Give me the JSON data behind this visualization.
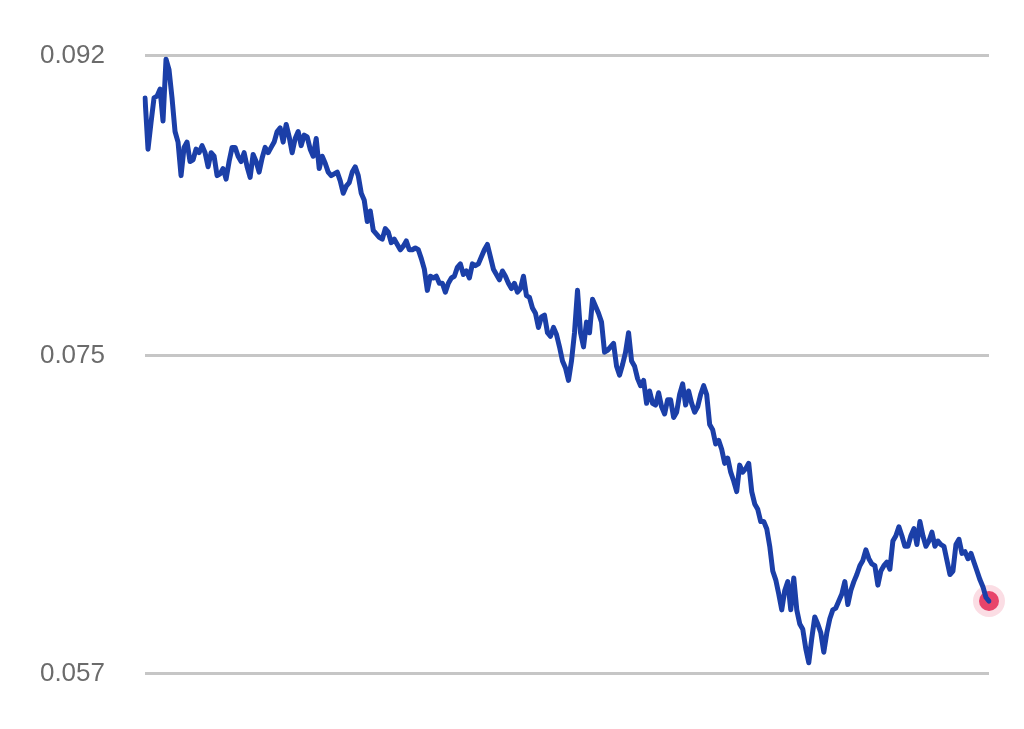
{
  "chart_data": {
    "type": "line",
    "categories": [
      null,
      null,
      null,
      null,
      null,
      null,
      null,
      null,
      null,
      null,
      null,
      null,
      null,
      null,
      null,
      null,
      null,
      null,
      null,
      null,
      null,
      null,
      null,
      null,
      null,
      null,
      null,
      null,
      null,
      null,
      null,
      null,
      null,
      null,
      null,
      null,
      null,
      null,
      null,
      null,
      null,
      null,
      null,
      null,
      null,
      null,
      null,
      null,
      null,
      null,
      null,
      null,
      null,
      null,
      null,
      null,
      null,
      null,
      null,
      null,
      null,
      null,
      null,
      null,
      null,
      null,
      null,
      null,
      null,
      null,
      null,
      null,
      null,
      null,
      null,
      null,
      null,
      null,
      null,
      null,
      null,
      null,
      null,
      null,
      null,
      null,
      null,
      null,
      null,
      null,
      null,
      null,
      null,
      null,
      null,
      null,
      null,
      null,
      null,
      null,
      null,
      null,
      null,
      null,
      null,
      null,
      null,
      null,
      null,
      null,
      null,
      null,
      null,
      null,
      null,
      null,
      null,
      null,
      null,
      null,
      null,
      null,
      null,
      null,
      null,
      null,
      null,
      null,
      null,
      null,
      null,
      null,
      null,
      null,
      null,
      null,
      null,
      null,
      null,
      null,
      null,
      null,
      null,
      null,
      null,
      null,
      null,
      null,
      null,
      null,
      null,
      null,
      null,
      null,
      null,
      null,
      null,
      null,
      null,
      null,
      null,
      null,
      null,
      null,
      null,
      null,
      null,
      null,
      null,
      null,
      null,
      null,
      null,
      null,
      null,
      null,
      null,
      null,
      null,
      null,
      null,
      null,
      null,
      null,
      null,
      null,
      null,
      null,
      null,
      null,
      null,
      null,
      null,
      null,
      null,
      null,
      null,
      null,
      null,
      null,
      null,
      null,
      null,
      null,
      null,
      null,
      null,
      null,
      null,
      null,
      null,
      null,
      null,
      null,
      null,
      null,
      null,
      null,
      null,
      null,
      null,
      null,
      null,
      null,
      null,
      null,
      null,
      null,
      null,
      null,
      null,
      null,
      null,
      null,
      null,
      null,
      null,
      null,
      null,
      null,
      null,
      null,
      null,
      null,
      null,
      null,
      null,
      null,
      null,
      null,
      null,
      null,
      null,
      null,
      null,
      null,
      null,
      null,
      null,
      null,
      null,
      null,
      null,
      null,
      null,
      null,
      null,
      null,
      null,
      null,
      null,
      null,
      null,
      null,
      null,
      null,
      null,
      null,
      null,
      null,
      null,
      null
    ],
    "series": [
      {
        "type": "line",
        "color": "#1b3fa8",
        "values": [
          0.0896,
          0.0867,
          0.0882,
          0.0896,
          0.0897,
          0.0901,
          0.0883,
          0.0918,
          0.0912,
          0.0896,
          0.0877,
          0.0871,
          0.0852,
          0.0868,
          0.0871,
          0.086,
          0.0861,
          0.0867,
          0.0865,
          0.0869,
          0.0865,
          0.0857,
          0.0865,
          0.0863,
          0.0852,
          0.0853,
          0.0856,
          0.085,
          0.086,
          0.0868,
          0.0868,
          0.0863,
          0.086,
          0.0865,
          0.0857,
          0.0851,
          0.0864,
          0.086,
          0.0854,
          0.0862,
          0.0868,
          0.0865,
          0.0868,
          0.0871,
          0.0877,
          0.0879,
          0.0871,
          0.0881,
          0.0874,
          0.0865,
          0.0873,
          0.0877,
          0.0869,
          0.0875,
          0.0874,
          0.0867,
          0.0863,
          0.0873,
          0.0856,
          0.0863,
          0.0859,
          0.0854,
          0.0852,
          0.0853,
          0.0854,
          0.0849,
          0.0842,
          0.0846,
          0.0848,
          0.0854,
          0.0857,
          0.0852,
          0.0842,
          0.0838,
          0.0826,
          0.0832,
          0.0821,
          0.0819,
          0.0817,
          0.0816,
          0.0822,
          0.082,
          0.0814,
          0.0816,
          0.0813,
          0.081,
          0.0812,
          0.0815,
          0.081,
          0.081,
          0.0811,
          0.081,
          0.0805,
          0.0799,
          0.0787,
          0.0795,
          0.0794,
          0.0795,
          0.0791,
          0.0791,
          0.0786,
          0.0791,
          0.0794,
          0.0795,
          0.08,
          0.0802,
          0.0796,
          0.0798,
          0.0794,
          0.0802,
          0.0801,
          0.0802,
          0.0806,
          0.081,
          0.0813,
          0.0806,
          0.0799,
          0.0796,
          0.0793,
          0.0798,
          0.0795,
          0.0791,
          0.0788,
          0.0791,
          0.0786,
          0.0788,
          0.0795,
          0.0784,
          0.0783,
          0.0777,
          0.0774,
          0.0766,
          0.0772,
          0.0773,
          0.0763,
          0.0761,
          0.0766,
          0.0762,
          0.0755,
          0.0747,
          0.0743,
          0.0736,
          0.0747,
          0.0763,
          0.0787,
          0.0763,
          0.0755,
          0.0769,
          0.0763,
          0.0782,
          0.0778,
          0.0774,
          0.0769,
          0.0752,
          0.0753,
          0.0755,
          0.0757,
          0.0744,
          0.0739,
          0.0745,
          0.0752,
          0.0763,
          0.0747,
          0.0744,
          0.0737,
          0.0733,
          0.0736,
          0.0723,
          0.073,
          0.0723,
          0.0722,
          0.0729,
          0.0721,
          0.0717,
          0.0725,
          0.0725,
          0.0715,
          0.0718,
          0.0728,
          0.0734,
          0.0722,
          0.073,
          0.0723,
          0.0718,
          0.0721,
          0.0728,
          0.0733,
          0.0728,
          0.0711,
          0.0708,
          0.07,
          0.0702,
          0.0697,
          0.0689,
          0.0692,
          0.0684,
          0.0679,
          0.0673,
          0.0688,
          0.0684,
          0.0686,
          0.0689,
          0.0673,
          0.0666,
          0.0663,
          0.0656,
          0.0656,
          0.0652,
          0.0642,
          0.0628,
          0.0623,
          0.0615,
          0.0606,
          0.0617,
          0.0622,
          0.0606,
          0.0624,
          0.0606,
          0.0598,
          0.0595,
          0.0584,
          0.0576,
          0.059,
          0.0602,
          0.0598,
          0.0593,
          0.0582,
          0.0593,
          0.0601,
          0.0606,
          0.0607,
          0.0611,
          0.0615,
          0.0622,
          0.0609,
          0.0617,
          0.0622,
          0.0626,
          0.0631,
          0.0634,
          0.064,
          0.0635,
          0.0632,
          0.0631,
          0.062,
          0.0628,
          0.0631,
          0.0633,
          0.0629,
          0.0645,
          0.0648,
          0.0653,
          0.0648,
          0.0642,
          0.0642,
          0.0648,
          0.0652,
          0.0643,
          0.0656,
          0.0648,
          0.0642,
          0.0645,
          0.065,
          0.0642,
          0.0645,
          0.0643,
          0.0642,
          0.0634,
          0.0626,
          0.0628,
          0.0643,
          0.0646,
          0.0638,
          0.0639,
          0.0635,
          0.0638,
          0.0633,
          0.0628,
          0.0623,
          0.0619,
          0.0613,
          0.0611
        ]
      },
      {
        "type": "scatter",
        "color": "#e8456b",
        "values": [
          null,
          null,
          null,
          null,
          null,
          null,
          null,
          null,
          null,
          null,
          null,
          null,
          null,
          null,
          null,
          null,
          null,
          null,
          null,
          null,
          null,
          null,
          null,
          null,
          null,
          null,
          null,
          null,
          null,
          null,
          null,
          null,
          null,
          null,
          null,
          null,
          null,
          null,
          null,
          null,
          null,
          null,
          null,
          null,
          null,
          null,
          null,
          null,
          null,
          null,
          null,
          null,
          null,
          null,
          null,
          null,
          null,
          null,
          null,
          null,
          null,
          null,
          null,
          null,
          null,
          null,
          null,
          null,
          null,
          null,
          null,
          null,
          null,
          null,
          null,
          null,
          null,
          null,
          null,
          null,
          null,
          null,
          null,
          null,
          null,
          null,
          null,
          null,
          null,
          null,
          null,
          null,
          null,
          null,
          null,
          null,
          null,
          null,
          null,
          null,
          null,
          null,
          null,
          null,
          null,
          null,
          null,
          null,
          null,
          null,
          null,
          null,
          null,
          null,
          null,
          null,
          null,
          null,
          null,
          null,
          null,
          null,
          null,
          null,
          null,
          null,
          null,
          null,
          null,
          null,
          null,
          null,
          null,
          null,
          null,
          null,
          null,
          null,
          null,
          null,
          null,
          null,
          null,
          null,
          null,
          null,
          null,
          null,
          null,
          null,
          null,
          null,
          null,
          null,
          null,
          null,
          null,
          null,
          null,
          null,
          null,
          null,
          null,
          null,
          null,
          null,
          null,
          null,
          null,
          null,
          null,
          null,
          null,
          null,
          null,
          null,
          null,
          null,
          null,
          null,
          null,
          null,
          null,
          null,
          null,
          null,
          null,
          null,
          null,
          null,
          null,
          null,
          null,
          null,
          null,
          null,
          null,
          null,
          null,
          null,
          null,
          null,
          null,
          null,
          null,
          null,
          null,
          null,
          null,
          null,
          null,
          null,
          null,
          null,
          null,
          null,
          null,
          null,
          null,
          null,
          null,
          null,
          null,
          null,
          null,
          null,
          null,
          null,
          null,
          null,
          null,
          null,
          null,
          null,
          null,
          null,
          null,
          null,
          null,
          null,
          null,
          null,
          null,
          null,
          null,
          null,
          null,
          null,
          null,
          null,
          null,
          null,
          null,
          null,
          null,
          null,
          null,
          null,
          null,
          null,
          null,
          null,
          null,
          null,
          null,
          null,
          null,
          null,
          null,
          null,
          null,
          null,
          null,
          null,
          null,
          null,
          null,
          null,
          null,
          null,
          null,
          0.0611
        ]
      }
    ],
    "ylim": [
      0.057,
      0.092
    ],
    "yticks": [
      0.057,
      0.075,
      0.092
    ],
    "grid": "y",
    "tick_labels": "y",
    "legend": false
  }
}
